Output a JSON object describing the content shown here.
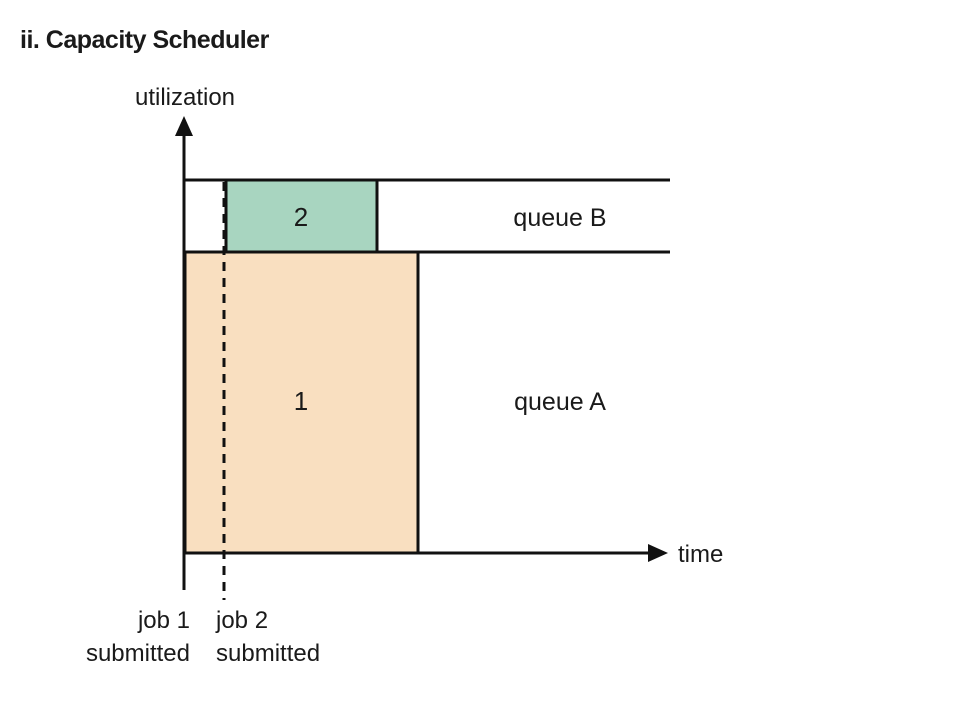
{
  "title": "ii. Capacity Scheduler",
  "axes": {
    "y_label": "utilization",
    "x_label": "time"
  },
  "queues": {
    "b_label": "queue B",
    "a_label": "queue A"
  },
  "jobs": [
    {
      "label": "1",
      "color": "#f9dfc0"
    },
    {
      "label": "2",
      "color": "#a8d5c0"
    }
  ],
  "events": {
    "job1_line1": "job 1",
    "job1_line2": "submitted",
    "job2_line1": "job 2",
    "job2_line2": "submitted"
  },
  "colors": {
    "line": "#111111",
    "job1_fill": "#f9dfc0",
    "job2_fill": "#a8d5c0"
  }
}
